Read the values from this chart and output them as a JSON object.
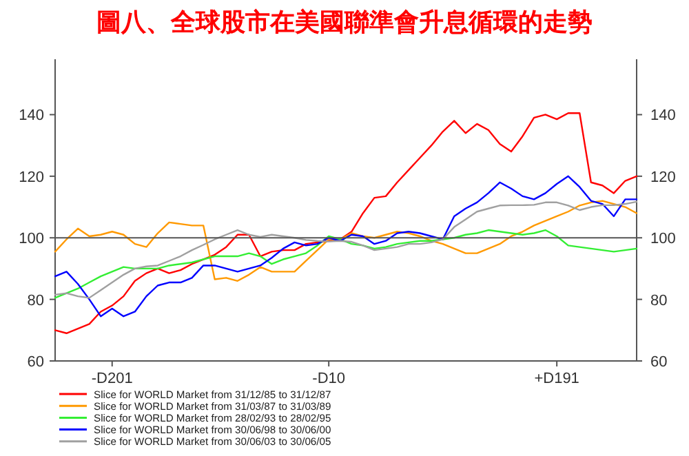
{
  "chart_data": {
    "type": "line",
    "title": "圖八、全球股市在美國聯準會升息循環的走勢",
    "categories": [
      null,
      null,
      null,
      null,
      null,
      "-D201",
      null,
      null,
      null,
      null,
      null,
      null,
      null,
      null,
      null,
      null,
      null,
      null,
      null,
      null,
      null,
      null,
      null,
      null,
      "-D10",
      null,
      null,
      null,
      null,
      null,
      null,
      null,
      null,
      null,
      null,
      null,
      null,
      null,
      null,
      null,
      null,
      null,
      null,
      null,
      "+D191",
      null,
      null,
      null,
      null,
      null,
      null,
      null
    ],
    "ylim": [
      60,
      158
    ],
    "yticks": [
      60,
      80,
      100,
      120,
      140
    ],
    "y2lim": [
      60,
      158
    ],
    "y2ticks": [
      60,
      80,
      100,
      120,
      140
    ],
    "grid": false,
    "legend": "bottom",
    "marker": "none",
    "line_style": "solid",
    "ref_lines": [
      {
        "axis": "y",
        "value": 100,
        "color": "#555555"
      }
    ],
    "series": [
      {
        "name": "Slice for WORLD Market from 31/12/85 to 31/12/87",
        "color": "#ff0000",
        "values": [
          70,
          69,
          70.5,
          72,
          76,
          78,
          81,
          86,
          88.5,
          90,
          88.5,
          89.5,
          91.5,
          93,
          94.5,
          97,
          101,
          101,
          94,
          95.5,
          96,
          96,
          98,
          98.5,
          99,
          99.5,
          102,
          108,
          113,
          113.5,
          118,
          122,
          126,
          130,
          134.5,
          138,
          134,
          137,
          135,
          130.5,
          128,
          133,
          139,
          140,
          138.5,
          140.5,
          140.5,
          118,
          117,
          114.5,
          118.5,
          120
        ]
      },
      {
        "name": "Slice for WORLD Market from 31/03/87 to 31/03/89",
        "color": "#ff9900",
        "values": [
          95.5,
          99.5,
          103,
          100.5,
          101,
          102,
          101,
          98,
          97,
          101.5,
          105,
          104.5,
          104,
          104,
          86.5,
          87,
          86,
          88,
          90.5,
          89,
          89,
          89,
          92.5,
          96,
          99.5,
          99.5,
          101.5,
          100.5,
          100,
          101,
          102,
          101.5,
          100.5,
          99,
          98,
          96.5,
          95,
          95,
          96.5,
          98,
          100.5,
          102,
          104,
          105.5,
          107,
          108.5,
          110.5,
          111.5,
          112,
          111,
          110,
          108
        ]
      },
      {
        "name": "Slice for WORLD Market from 28/02/93 to 28/02/95",
        "color": "#33ee33",
        "values": [
          80.5,
          82,
          83.5,
          85.5,
          87.5,
          89,
          90.5,
          90,
          90,
          90,
          91,
          91.5,
          92,
          93,
          94,
          94,
          94,
          95,
          94,
          91.5,
          93,
          94,
          95,
          97.5,
          100.5,
          99.5,
          98,
          97.5,
          96.5,
          97,
          98,
          98.5,
          99,
          99,
          99.5,
          100,
          101,
          101.5,
          102.5,
          102,
          101.5,
          101,
          101.5,
          102.5,
          100.5,
          97.5,
          97,
          96.5,
          96,
          95.5,
          96,
          96.5
        ]
      },
      {
        "name": "Slice for WORLD Market from 30/06/98 to 30/06/00",
        "color": "#0000ff",
        "values": [
          87.5,
          89,
          85,
          80,
          74.5,
          77,
          74.5,
          76,
          81,
          84.5,
          85.5,
          85.5,
          87,
          91,
          91,
          90,
          89,
          90,
          91,
          93.5,
          96.5,
          98.5,
          97.5,
          98,
          100,
          99,
          101,
          100.5,
          98,
          99,
          101.5,
          102,
          101.5,
          100.5,
          99.5,
          107,
          109.5,
          111.5,
          114.5,
          118,
          116,
          113.5,
          112.5,
          114.5,
          117.5,
          120,
          116.5,
          112,
          111,
          107,
          112.5,
          112.5
        ]
      },
      {
        "name": "Slice for WORLD Market from 30/06/03 to 30/06/05",
        "color": "#a0a0a0",
        "values": [
          81.5,
          82,
          81,
          80.5,
          83,
          85.5,
          88,
          90,
          90.7,
          91,
          92.5,
          94,
          96,
          97.7,
          99.5,
          101,
          102.5,
          101,
          100.3,
          101,
          100.5,
          100,
          99.3,
          99,
          98.8,
          99,
          98.7,
          97.5,
          96,
          96.5,
          97,
          98,
          98,
          98.5,
          99.5,
          103.5,
          106,
          108.5,
          109.5,
          110.5,
          110.6,
          110.6,
          110.7,
          111.5,
          111.5,
          110.5,
          109,
          110,
          110.6,
          110.6,
          111,
          111.7
        ]
      }
    ]
  }
}
